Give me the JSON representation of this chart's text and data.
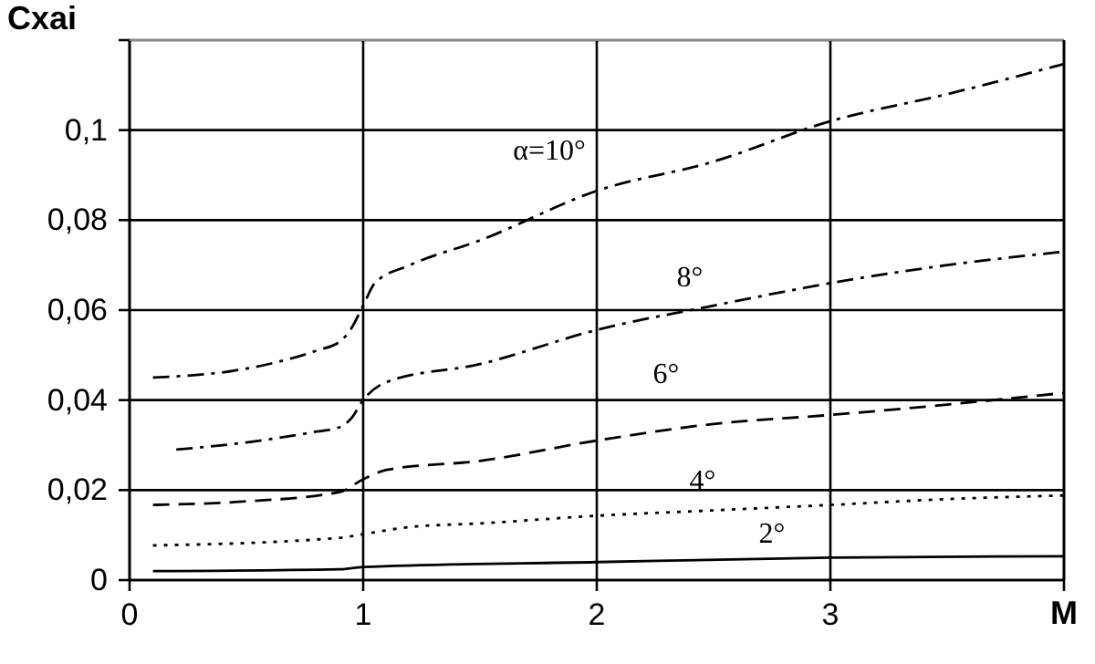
{
  "chart_data": {
    "type": "line",
    "ylabel": "Cxai",
    "xlabel": "M",
    "xlim": [
      0,
      4
    ],
    "ylim": [
      0,
      0.12
    ],
    "xticks": [
      0,
      1,
      2,
      3,
      {
        "value": 4,
        "label": null
      }
    ],
    "yticks": [
      0,
      {
        "value": 0.02,
        "label": "0,02"
      },
      {
        "value": 0.04,
        "label": "0,04"
      },
      {
        "value": 0.06,
        "label": "0,06"
      },
      {
        "value": 0.08,
        "label": "0,08"
      },
      {
        "value": 0.1,
        "label": "0,1"
      },
      {
        "value": 0.12,
        "label": null
      }
    ],
    "grid": true,
    "marker": "none",
    "series": [
      {
        "name": "α=10°",
        "color": "#000000",
        "line_style": "dashdot",
        "x": [
          0.1,
          0.5,
          0.8,
          0.9,
          0.95,
          1.0,
          1.05,
          1.2,
          1.5,
          2.0,
          2.5,
          3.0,
          3.5,
          4.0
        ],
        "values": [
          0.045,
          0.047,
          0.051,
          0.053,
          0.056,
          0.061,
          0.066,
          0.07,
          0.0755,
          0.0865,
          0.093,
          0.102,
          0.108,
          0.1147
        ]
      },
      {
        "name": "8°",
        "color": "#000000",
        "line_style": "dashdot",
        "x": [
          0.2,
          0.5,
          0.8,
          0.9,
          0.95,
          1.0,
          1.1,
          1.5,
          2.0,
          2.5,
          3.0,
          3.5,
          4.0
        ],
        "values": [
          0.029,
          0.0306,
          0.033,
          0.034,
          0.036,
          0.04,
          0.044,
          0.048,
          0.0556,
          0.061,
          0.066,
          0.07,
          0.073
        ]
      },
      {
        "name": "6°",
        "color": "#000000",
        "line_style": "dashed",
        "x": [
          0.1,
          0.5,
          0.9,
          1.0,
          1.1,
          1.5,
          2.0,
          2.5,
          3.0,
          3.5,
          4.0
        ],
        "values": [
          0.0167,
          0.0175,
          0.0196,
          0.0224,
          0.0245,
          0.0265,
          0.031,
          0.0347,
          0.0367,
          0.039,
          0.0416
        ]
      },
      {
        "name": "4°",
        "color": "#000000",
        "line_style": "dotted",
        "x": [
          0.1,
          0.9,
          1.0,
          1.2,
          1.5,
          2.0,
          2.5,
          3.0,
          3.5,
          4.0
        ],
        "values": [
          0.0077,
          0.0094,
          0.0102,
          0.0118,
          0.0126,
          0.0143,
          0.0155,
          0.0167,
          0.018,
          0.0188
        ]
      },
      {
        "name": "2°",
        "color": "#000000",
        "line_style": "solid",
        "x": [
          0.1,
          0.9,
          1.0,
          2.0,
          3.0,
          4.0
        ],
        "values": [
          0.002,
          0.0024,
          0.0029,
          0.004,
          0.005,
          0.0053
        ]
      }
    ]
  }
}
